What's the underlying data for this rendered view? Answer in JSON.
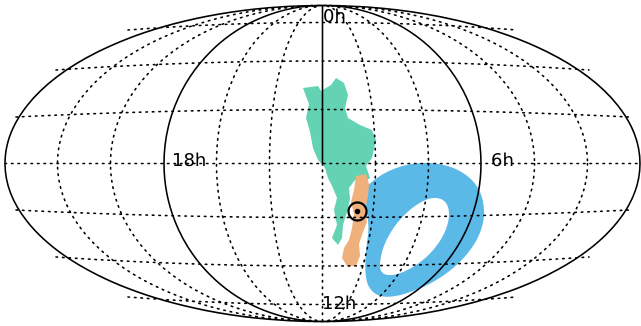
{
  "projection": "mollweide",
  "labels": {
    "ra_0": "0h",
    "ra_6": "6h",
    "ra_12": "12h",
    "ra_18": "18h"
  },
  "colors": {
    "region_green": "#63d3b4",
    "region_blue": "#5bb9e8",
    "region_orange": "#f0b07c",
    "outline": "#000000",
    "graticule": "#000000",
    "background": "#ffffff"
  },
  "marker": {
    "icon": "target-circle-icon",
    "shape": "ring-with-dot"
  },
  "regions": [
    {
      "name": "green-region",
      "color_key": "region_green"
    },
    {
      "name": "blue-annulus-region",
      "color_key": "region_blue"
    },
    {
      "name": "orange-strip-region",
      "color_key": "region_orange"
    }
  ]
}
